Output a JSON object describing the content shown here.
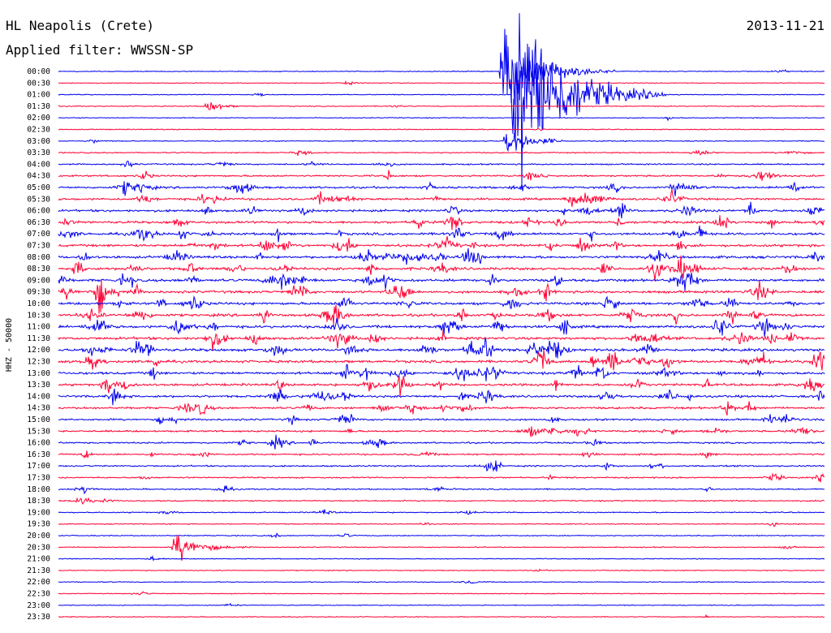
{
  "header": {
    "station": "HL Neapolis (Crete)",
    "date": "2013-11-21",
    "filter": "Applied filter: WWSSN-SP"
  },
  "chart_data": {
    "type": "line",
    "title": "HL Neapolis (Crete)",
    "subtitle": "Applied filter: WWSSN-SP",
    "ylabel": "HHZ - 50000",
    "trace_colors": [
      "#0000ee",
      "#ff0033"
    ],
    "rows": [
      "00:00",
      "00:30",
      "01:00",
      "01:30",
      "02:00",
      "02:30",
      "03:00",
      "03:30",
      "04:00",
      "04:30",
      "05:00",
      "05:30",
      "06:00",
      "06:30",
      "07:00",
      "07:30",
      "08:00",
      "08:30",
      "09:00",
      "09:30",
      "10:00",
      "10:30",
      "11:00",
      "11:30",
      "12:00",
      "12:30",
      "13:00",
      "13:30",
      "14:00",
      "14:30",
      "15:00",
      "15:30",
      "16:00",
      "16:30",
      "17:00",
      "17:30",
      "18:00",
      "18:30",
      "19:00",
      "19:30",
      "20:00",
      "20:30",
      "21:00",
      "21:30",
      "22:00",
      "22:30",
      "23:00",
      "23:30"
    ],
    "activity": [
      0.05,
      0.06,
      0.06,
      0.07,
      0.08,
      0.09,
      0.12,
      0.2,
      0.32,
      0.5,
      0.65,
      0.7,
      0.75,
      0.8,
      0.82,
      0.85,
      0.88,
      0.9,
      0.9,
      0.9,
      0.88,
      0.9,
      0.92,
      0.95,
      0.95,
      0.9,
      0.85,
      0.8,
      0.75,
      0.65,
      0.55,
      0.5,
      0.45,
      0.4,
      0.38,
      0.32,
      0.28,
      0.22,
      0.18,
      0.14,
      0.12,
      0.1,
      0.08,
      0.06,
      0.05,
      0.05,
      0.05,
      0.05
    ],
    "events": [
      {
        "row": "00:00",
        "minute": 17.3,
        "amp": 82,
        "length_min": 4.5
      },
      {
        "row": "01:00",
        "minute": 17.8,
        "amp": 175,
        "length_min": 6
      },
      {
        "row": "03:00",
        "minute": 17.5,
        "amp": 30,
        "length_min": 2.5
      },
      {
        "row": "01:30",
        "minute": 5.8,
        "amp": 14,
        "length_min": 1.5
      },
      {
        "row": "20:30",
        "minute": 4.5,
        "amp": 26,
        "length_min": 3
      }
    ]
  }
}
